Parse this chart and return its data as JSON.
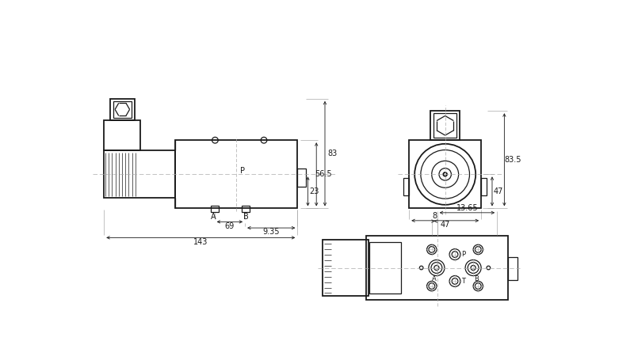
{
  "bg_color": "#ffffff",
  "lc": "#1a1a1a",
  "clc": "#aaaaaa",
  "dim_83": "83",
  "dim_56_5": "56.5",
  "dim_23": "23",
  "dim_69": "69",
  "dim_9_35": "9.35",
  "dim_143": "143",
  "dim_47h": "47",
  "dim_47v": "47",
  "dim_83_5": "83.5",
  "dim_13_65": "13.65",
  "dim_8": "8",
  "label_P": "P",
  "label_A": "A",
  "label_B": "B",
  "label_T": "T",
  "fs": 7,
  "lw": 0.9,
  "tlw": 1.3
}
